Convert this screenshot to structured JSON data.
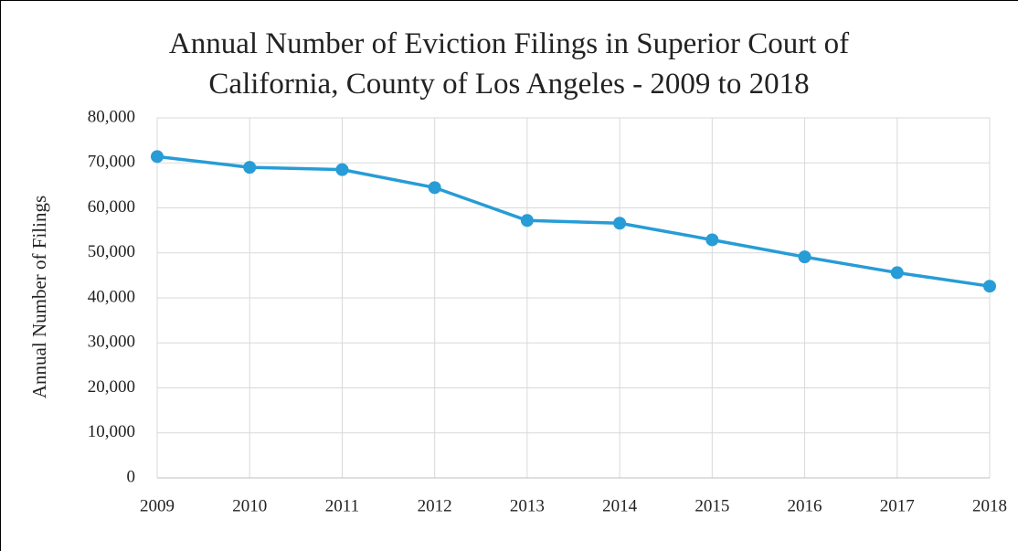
{
  "chart_data": {
    "type": "line",
    "title": "Annual Number of Eviction Filings in Superior Court of California, County of Los Angeles - 2009 to 2018",
    "y_label": "Annual Number of Filings",
    "x": [
      2009,
      2010,
      2011,
      2012,
      2013,
      2014,
      2015,
      2016,
      2017,
      2018
    ],
    "xlim": [
      2009,
      2018
    ],
    "xticks": [
      2009,
      2010,
      2011,
      2012,
      2013,
      2014,
      2015,
      2016,
      2017,
      2018
    ],
    "series": [
      {
        "name": "Filings",
        "color": "#279cd6",
        "values": [
          71400,
          69000,
          68500,
          64500,
          57200,
          56600,
          52900,
          49100,
          45600,
          42600
        ]
      }
    ],
    "ylim": [
      0,
      80000
    ],
    "yticks": [
      0,
      {
        "value": 10000,
        "label": "10,000"
      },
      {
        "value": 20000,
        "label": "20,000"
      },
      {
        "value": 30000,
        "label": "30,000"
      },
      {
        "value": 40000,
        "label": "40,000"
      },
      {
        "value": 50000,
        "label": "50,000"
      },
      {
        "value": 60000,
        "label": "60,000"
      },
      {
        "value": 70000,
        "label": "70,000"
      },
      {
        "value": 80000,
        "label": "80,000"
      }
    ],
    "grid": true
  }
}
